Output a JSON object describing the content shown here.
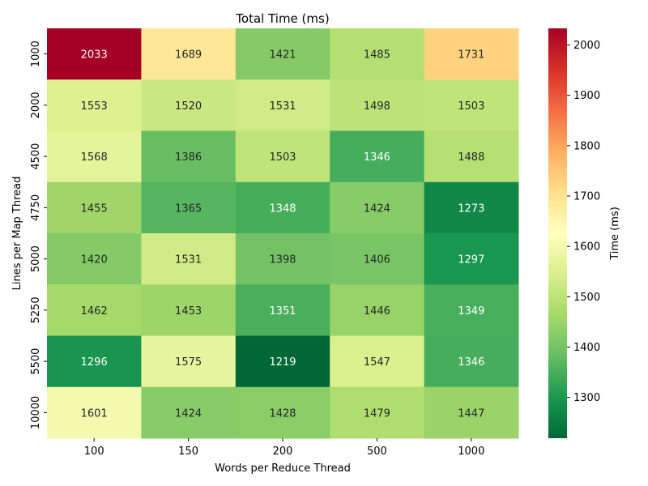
{
  "chart_data": {
    "type": "heatmap",
    "title": "Total Time (ms)",
    "xlabel": "Words per Reduce Thread",
    "ylabel": "Lines per Map Thread",
    "x_categories": [
      "100",
      "150",
      "200",
      "500",
      "1000"
    ],
    "y_categories": [
      "1000",
      "2000",
      "4500",
      "4750",
      "5000",
      "5250",
      "5500",
      "10000"
    ],
    "values": [
      [
        2033,
        1689,
        1421,
        1485,
        1731
      ],
      [
        1553,
        1520,
        1531,
        1498,
        1503
      ],
      [
        1568,
        1386,
        1503,
        1346,
        1488
      ],
      [
        1455,
        1365,
        1348,
        1424,
        1273
      ],
      [
        1420,
        1531,
        1398,
        1406,
        1297
      ],
      [
        1462,
        1453,
        1351,
        1446,
        1349
      ],
      [
        1296,
        1575,
        1219,
        1547,
        1346
      ],
      [
        1601,
        1424,
        1428,
        1479,
        1447
      ]
    ],
    "colorbar": {
      "label": "Time (ms)",
      "range": [
        1219,
        2033
      ],
      "ticks": [
        "1300",
        "1400",
        "1500",
        "1600",
        "1700",
        "1800",
        "1900",
        "2000"
      ],
      "colormap": "RdYlGn_r"
    }
  }
}
